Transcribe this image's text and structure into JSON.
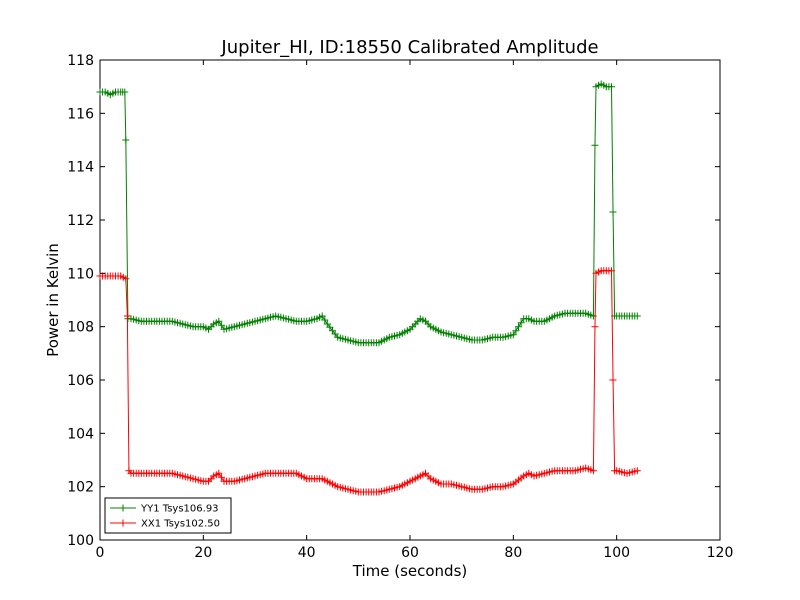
{
  "chart_data": {
    "type": "line",
    "title": "Jupiter_HI, ID:18550 Calibrated Amplitude",
    "xlabel": "Time (seconds)",
    "ylabel": "Power in Kelvin",
    "xlim": [
      0,
      120
    ],
    "ylim": [
      100,
      118
    ],
    "xticks": [
      0,
      20,
      40,
      60,
      80,
      100,
      120
    ],
    "yticks": [
      100,
      102,
      104,
      106,
      108,
      110,
      112,
      114,
      116,
      118
    ],
    "grid": false,
    "legend_position": "lower-left",
    "marker": "+",
    "series": [
      {
        "name": "YY1 Tsys106.93",
        "color": "#008000",
        "x": [
          0,
          1,
          2,
          3,
          4,
          4.8,
          5,
          5.4,
          6,
          8,
          10,
          12,
          14,
          16,
          18,
          20,
          21,
          22,
          23,
          24,
          26,
          28,
          30,
          32,
          34,
          36,
          38,
          40,
          42,
          43,
          44,
          46,
          48,
          50,
          52,
          54,
          56,
          58,
          60,
          62,
          63,
          64,
          66,
          68,
          70,
          72,
          74,
          76,
          78,
          80,
          82,
          83,
          84,
          86,
          88,
          90,
          92,
          94,
          95.5,
          95.8,
          96,
          97,
          98,
          99,
          99.3,
          99.6,
          100,
          102,
          104
        ],
        "y": [
          116.8,
          116.8,
          116.7,
          116.8,
          116.8,
          116.8,
          115.0,
          108.3,
          108.3,
          108.2,
          108.2,
          108.2,
          108.2,
          108.1,
          108.0,
          108.0,
          107.9,
          108.1,
          108.2,
          107.9,
          108.0,
          108.1,
          108.2,
          108.3,
          108.4,
          108.3,
          108.2,
          108.2,
          108.3,
          108.4,
          108.1,
          107.6,
          107.5,
          107.4,
          107.4,
          107.4,
          107.6,
          107.7,
          107.9,
          108.3,
          108.2,
          108.0,
          107.8,
          107.7,
          107.6,
          107.5,
          107.5,
          107.6,
          107.6,
          107.7,
          108.3,
          108.3,
          108.2,
          108.2,
          108.4,
          108.5,
          108.5,
          108.5,
          108.4,
          114.8,
          117.0,
          117.1,
          117.0,
          117.0,
          112.3,
          108.4,
          108.4,
          108.4,
          108.4
        ]
      },
      {
        "name": "XX1 Tsys102.50",
        "color": "#ff0000",
        "x": [
          0,
          1,
          2,
          3,
          4,
          5,
          5.3,
          5.6,
          6,
          8,
          10,
          12,
          14,
          16,
          18,
          20,
          21,
          22,
          23,
          24,
          26,
          28,
          30,
          32,
          34,
          36,
          38,
          40,
          42,
          43,
          44,
          46,
          48,
          50,
          52,
          54,
          56,
          58,
          60,
          62,
          63,
          64,
          66,
          68,
          70,
          72,
          74,
          76,
          78,
          80,
          82,
          83,
          84,
          86,
          88,
          90,
          92,
          94,
          95.5,
          95.8,
          96,
          97,
          98,
          99,
          99.3,
          99.6,
          100,
          102,
          104
        ],
        "y": [
          109.9,
          109.9,
          109.9,
          109.9,
          109.9,
          109.8,
          108.4,
          102.6,
          102.5,
          102.5,
          102.5,
          102.5,
          102.5,
          102.4,
          102.3,
          102.2,
          102.2,
          102.4,
          102.5,
          102.2,
          102.2,
          102.3,
          102.4,
          102.5,
          102.5,
          102.5,
          102.5,
          102.3,
          102.3,
          102.3,
          102.2,
          102.0,
          101.9,
          101.8,
          101.8,
          101.8,
          101.9,
          102.0,
          102.2,
          102.4,
          102.5,
          102.3,
          102.1,
          102.1,
          102.0,
          101.9,
          101.9,
          102.0,
          102.0,
          102.1,
          102.4,
          102.5,
          102.4,
          102.5,
          102.6,
          102.6,
          102.6,
          102.7,
          102.6,
          108.0,
          110.0,
          110.1,
          110.1,
          110.1,
          106.0,
          102.6,
          102.6,
          102.5,
          102.6
        ]
      }
    ]
  }
}
